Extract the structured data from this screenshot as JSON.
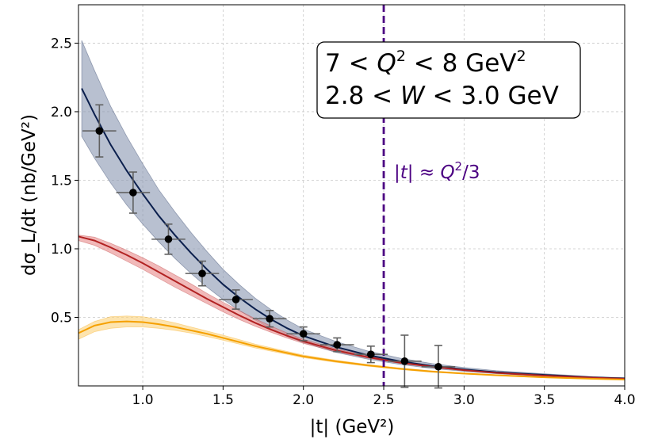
{
  "chart_data": {
    "type": "line",
    "title": "",
    "xlabel": "|t| (GeV²)",
    "ylabel": "dσ_L/dt (nb/GeV²)",
    "xlim": [
      0.6,
      4.0
    ],
    "ylim": [
      0.0,
      2.78
    ],
    "grid": true,
    "x_ticks": [
      1.0,
      1.5,
      2.0,
      2.5,
      3.0,
      3.5,
      4.0
    ],
    "x_tick_labels": [
      "1.0",
      "1.5",
      "2.0",
      "2.5",
      "3.0",
      "3.5",
      "4.0"
    ],
    "y_ticks": [
      0.5,
      1.0,
      1.5,
      2.0,
      2.5
    ],
    "y_tick_labels": [
      "0.5",
      "1.0",
      "1.5",
      "2.0",
      "2.5"
    ],
    "annotation": {
      "line1": {
        "a": "7 < ",
        "var": "Q",
        "sup": "2",
        "b": " < 8 GeV",
        "unit_sup": "2"
      },
      "line2": {
        "a": "2.8 < ",
        "var": "W",
        "b": " < 3.0 GeV"
      }
    },
    "vline": {
      "x": 2.5,
      "label_pre": "|",
      "label_var": "t",
      "label_mid": "| ≈ ",
      "label_var2": "Q",
      "label_sup": "2",
      "label_post": "/3",
      "color": "#4b0082"
    },
    "colors": {
      "navy_line": "#0b1f4d",
      "navy_band": "#8896b0",
      "red_line": "#b22222",
      "red_band": "#e88a8a",
      "orange_line": "#f5a000",
      "orange_band": "#fbd27a",
      "points": "#000000",
      "errorbars": "#606060"
    },
    "series": [
      {
        "name": "navy-curve",
        "x": [
          0.62,
          0.7,
          0.8,
          0.9,
          1.0,
          1.1,
          1.2,
          1.3,
          1.4,
          1.5,
          1.6,
          1.7,
          1.8,
          1.9,
          2.0,
          2.2,
          2.4,
          2.6,
          2.8,
          3.0,
          3.2,
          3.5,
          3.8,
          4.0
        ],
        "y": [
          2.17,
          1.98,
          1.76,
          1.57,
          1.4,
          1.24,
          1.1,
          0.97,
          0.85,
          0.74,
          0.645,
          0.56,
          0.485,
          0.42,
          0.365,
          0.285,
          0.225,
          0.18,
          0.145,
          0.12,
          0.1,
          0.08,
          0.062,
          0.055
        ],
        "lo": [
          1.82,
          1.66,
          1.48,
          1.32,
          1.18,
          1.05,
          0.93,
          0.82,
          0.72,
          0.63,
          0.55,
          0.48,
          0.415,
          0.36,
          0.315,
          0.245,
          0.195,
          0.157,
          0.127,
          0.106,
          0.089,
          0.071,
          0.056,
          0.05
        ],
        "hi": [
          2.52,
          2.3,
          2.04,
          1.82,
          1.62,
          1.43,
          1.27,
          1.12,
          0.98,
          0.85,
          0.74,
          0.64,
          0.555,
          0.48,
          0.415,
          0.325,
          0.255,
          0.203,
          0.163,
          0.134,
          0.111,
          0.089,
          0.068,
          0.06
        ]
      },
      {
        "name": "red-curve",
        "x": [
          0.6,
          0.7,
          0.8,
          0.9,
          1.0,
          1.1,
          1.2,
          1.3,
          1.4,
          1.5,
          1.6,
          1.7,
          1.8,
          1.9,
          2.0,
          2.2,
          2.4,
          2.6,
          2.8,
          3.0,
          3.2,
          3.5,
          3.8,
          4.0
        ],
        "y": [
          1.09,
          1.06,
          1.01,
          0.955,
          0.895,
          0.83,
          0.765,
          0.7,
          0.635,
          0.575,
          0.515,
          0.46,
          0.41,
          0.365,
          0.325,
          0.26,
          0.21,
          0.17,
          0.14,
          0.115,
          0.095,
          0.075,
          0.06,
          0.052
        ],
        "lo": [
          1.06,
          1.025,
          0.97,
          0.91,
          0.85,
          0.785,
          0.72,
          0.66,
          0.6,
          0.54,
          0.485,
          0.435,
          0.39,
          0.348,
          0.31,
          0.25,
          0.203,
          0.165,
          0.136,
          0.112,
          0.093,
          0.073,
          0.058,
          0.05
        ],
        "hi": [
          1.1,
          1.085,
          1.04,
          0.99,
          0.935,
          0.875,
          0.81,
          0.745,
          0.675,
          0.61,
          0.55,
          0.49,
          0.435,
          0.385,
          0.34,
          0.272,
          0.218,
          0.176,
          0.145,
          0.118,
          0.098,
          0.077,
          0.062,
          0.054
        ]
      },
      {
        "name": "orange-curve",
        "x": [
          0.6,
          0.7,
          0.8,
          0.9,
          1.0,
          1.1,
          1.2,
          1.3,
          1.4,
          1.5,
          1.6,
          1.7,
          1.8,
          1.9,
          2.0,
          2.2,
          2.4,
          2.6,
          2.8,
          3.0,
          3.2,
          3.5,
          3.8,
          4.0
        ],
        "y": [
          0.385,
          0.44,
          0.465,
          0.47,
          0.465,
          0.45,
          0.43,
          0.405,
          0.38,
          0.35,
          0.32,
          0.29,
          0.265,
          0.24,
          0.215,
          0.18,
          0.15,
          0.125,
          0.105,
          0.09,
          0.078,
          0.063,
          0.052,
          0.046
        ],
        "lo": [
          0.34,
          0.395,
          0.42,
          0.43,
          0.43,
          0.42,
          0.405,
          0.385,
          0.36,
          0.333,
          0.305,
          0.277,
          0.253,
          0.23,
          0.206,
          0.172,
          0.143,
          0.12,
          0.1,
          0.086,
          0.075,
          0.06,
          0.05,
          0.044
        ],
        "hi": [
          0.41,
          0.47,
          0.505,
          0.51,
          0.505,
          0.485,
          0.46,
          0.43,
          0.4,
          0.37,
          0.338,
          0.305,
          0.278,
          0.251,
          0.225,
          0.188,
          0.157,
          0.131,
          0.11,
          0.094,
          0.081,
          0.066,
          0.054,
          0.048
        ]
      }
    ],
    "points": {
      "name": "data",
      "x": [
        0.73,
        0.94,
        1.16,
        1.37,
        1.58,
        1.79,
        2.0,
        2.21,
        2.42,
        2.63,
        2.84
      ],
      "y": [
        1.86,
        1.41,
        1.07,
        0.82,
        0.63,
        0.49,
        0.38,
        0.3,
        0.23,
        0.18,
        0.14
      ],
      "xerr": [
        0.105,
        0.105,
        0.105,
        0.105,
        0.105,
        0.105,
        0.105,
        0.105,
        0.105,
        0.105,
        0.105
      ],
      "yerr": [
        0.19,
        0.15,
        0.11,
        0.09,
        0.07,
        0.06,
        0.05,
        0.05,
        0.06,
        0.19,
        0.155
      ]
    }
  }
}
